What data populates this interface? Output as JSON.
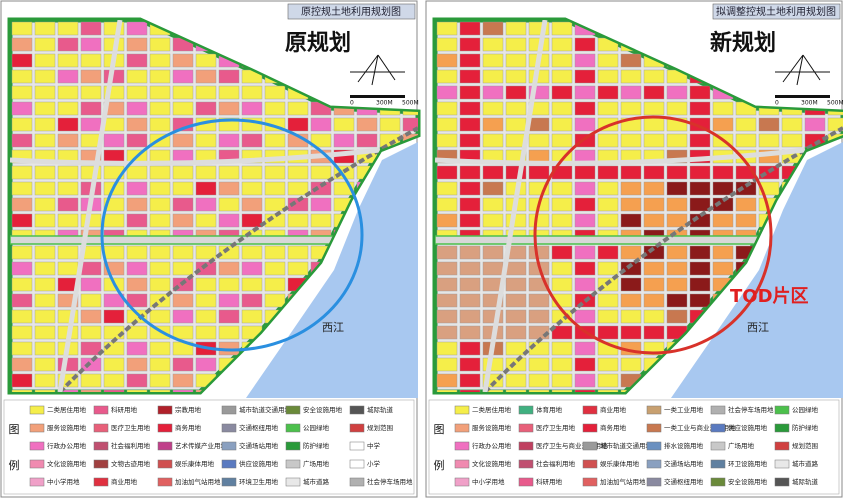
{
  "panels": [
    {
      "header": "原控规土地利用规划图",
      "title": "原规划",
      "scale": [
        "0",
        "300M",
        "500M"
      ],
      "river_label": "西江",
      "legend_title": [
        "图",
        "例"
      ],
      "legend": [
        {
          "label": "二类居住用地",
          "color": "#f5ee4a"
        },
        {
          "label": "科研用地",
          "color": "#e85a8c"
        },
        {
          "label": "宗教用地",
          "color": "#b0202a"
        },
        {
          "label": "城市轨道交通用地",
          "color": "#9a9a9a"
        },
        {
          "label": "安全设施用地",
          "color": "#6a8a3a"
        },
        {
          "label": "城际轨道",
          "color": "#555555"
        },
        {
          "label": "服务设施用地",
          "color": "#f2a07a"
        },
        {
          "label": "医疗卫生用地",
          "color": "#e8607a"
        },
        {
          "label": "商务用地",
          "color": "#e4203a"
        },
        {
          "label": "交通枢纽用地",
          "color": "#8a8aa0"
        },
        {
          "label": "公园绿地",
          "color": "#4cc04c"
        },
        {
          "label": "规划范围",
          "color": "#d04040"
        },
        {
          "label": "行政办公用地",
          "color": "#f070c0"
        },
        {
          "label": "社会福利用地",
          "color": "#c05070"
        },
        {
          "label": "艺术传媒产业用地",
          "color": "#c0408a"
        },
        {
          "label": "交通场站用地",
          "color": "#8aa0c0"
        },
        {
          "label": "防护绿地",
          "color": "#2a9a3a"
        },
        {
          "label": "中学",
          "color": "#ffffff"
        },
        {
          "label": "文化设施用地",
          "color": "#f08ab0"
        },
        {
          "label": "文物古迹用地",
          "color": "#a04040"
        },
        {
          "label": "娱乐康体用地",
          "color": "#d05050"
        },
        {
          "label": "供应设施用地",
          "color": "#5a7ac0"
        },
        {
          "label": "广场用地",
          "color": "#c8c8c8"
        },
        {
          "label": "小学",
          "color": "#ffffff"
        },
        {
          "label": "中小学用地",
          "color": "#f0a0c8"
        },
        {
          "label": "商业用地",
          "color": "#e03040"
        },
        {
          "label": "加油加气站用地",
          "color": "#e06060"
        },
        {
          "label": "环境卫生用地",
          "color": "#6080a0"
        },
        {
          "label": "城市道路",
          "color": "#e8e8e8"
        },
        {
          "label": "社会停车场用地",
          "color": "#b0b0b0"
        }
      ]
    },
    {
      "header": "拟调整控规土地利用规划图",
      "title": "新规划",
      "scale": [
        "0",
        "300M",
        "500M"
      ],
      "river_label": "西江",
      "tod_label": "TOD片区",
      "legend_title": [
        "图",
        "例"
      ],
      "legend": [
        {
          "label": "二类居住用地",
          "color": "#f5ee4a"
        },
        {
          "label": "体育用地",
          "color": "#40b080"
        },
        {
          "label": "商业用地",
          "color": "#e03040"
        },
        {
          "label": "一类工业用地",
          "color": "#c8a070"
        },
        {
          "label": "社会停车场用地",
          "color": "#b0b0b0"
        },
        {
          "label": "公园绿地",
          "color": "#4cc04c"
        },
        {
          "label": "服务设施用地",
          "color": "#f2a07a"
        },
        {
          "label": "医疗卫生用地",
          "color": "#e8607a"
        },
        {
          "label": "商务用地",
          "color": "#e4203a"
        },
        {
          "label": "一类工业与商业混合用地",
          "color": "#c87850"
        },
        {
          "label": "供应设施用地",
          "color": "#5a7ac0"
        },
        {
          "label": "防护绿地",
          "color": "#2a9a3a"
        },
        {
          "label": "行政办公用地",
          "color": "#f070c0"
        },
        {
          "label": "医疗卫生与商业混合用地",
          "color": "#c04060"
        },
        {
          "label": "城市轨道交通用地",
          "color": "#9a9a9a"
        },
        {
          "label": "排水设施用地",
          "color": "#6a90c0"
        },
        {
          "label": "广场用地",
          "color": "#c8c8c8"
        },
        {
          "label": "规划范围",
          "color": "#d04040"
        },
        {
          "label": "文化设施用地",
          "color": "#f08ab0"
        },
        {
          "label": "社会福利用地",
          "color": "#c05070"
        },
        {
          "label": "娱乐康体用地",
          "color": "#d05050"
        },
        {
          "label": "交通场站用地",
          "color": "#8aa0c0"
        },
        {
          "label": "环卫设施用地",
          "color": "#6080a0"
        },
        {
          "label": "城市道路",
          "color": "#e8e8e8"
        },
        {
          "label": "中小学用地",
          "color": "#f0a0c8"
        },
        {
          "label": "科研用地",
          "color": "#e85a8c"
        },
        {
          "label": "加油加气站用地",
          "color": "#e06060"
        },
        {
          "label": "交通枢纽用地",
          "color": "#8a8aa0"
        },
        {
          "label": "安全设施用地",
          "color": "#6a8a3a"
        },
        {
          "label": "城际轨道",
          "color": "#555555"
        }
      ]
    }
  ]
}
